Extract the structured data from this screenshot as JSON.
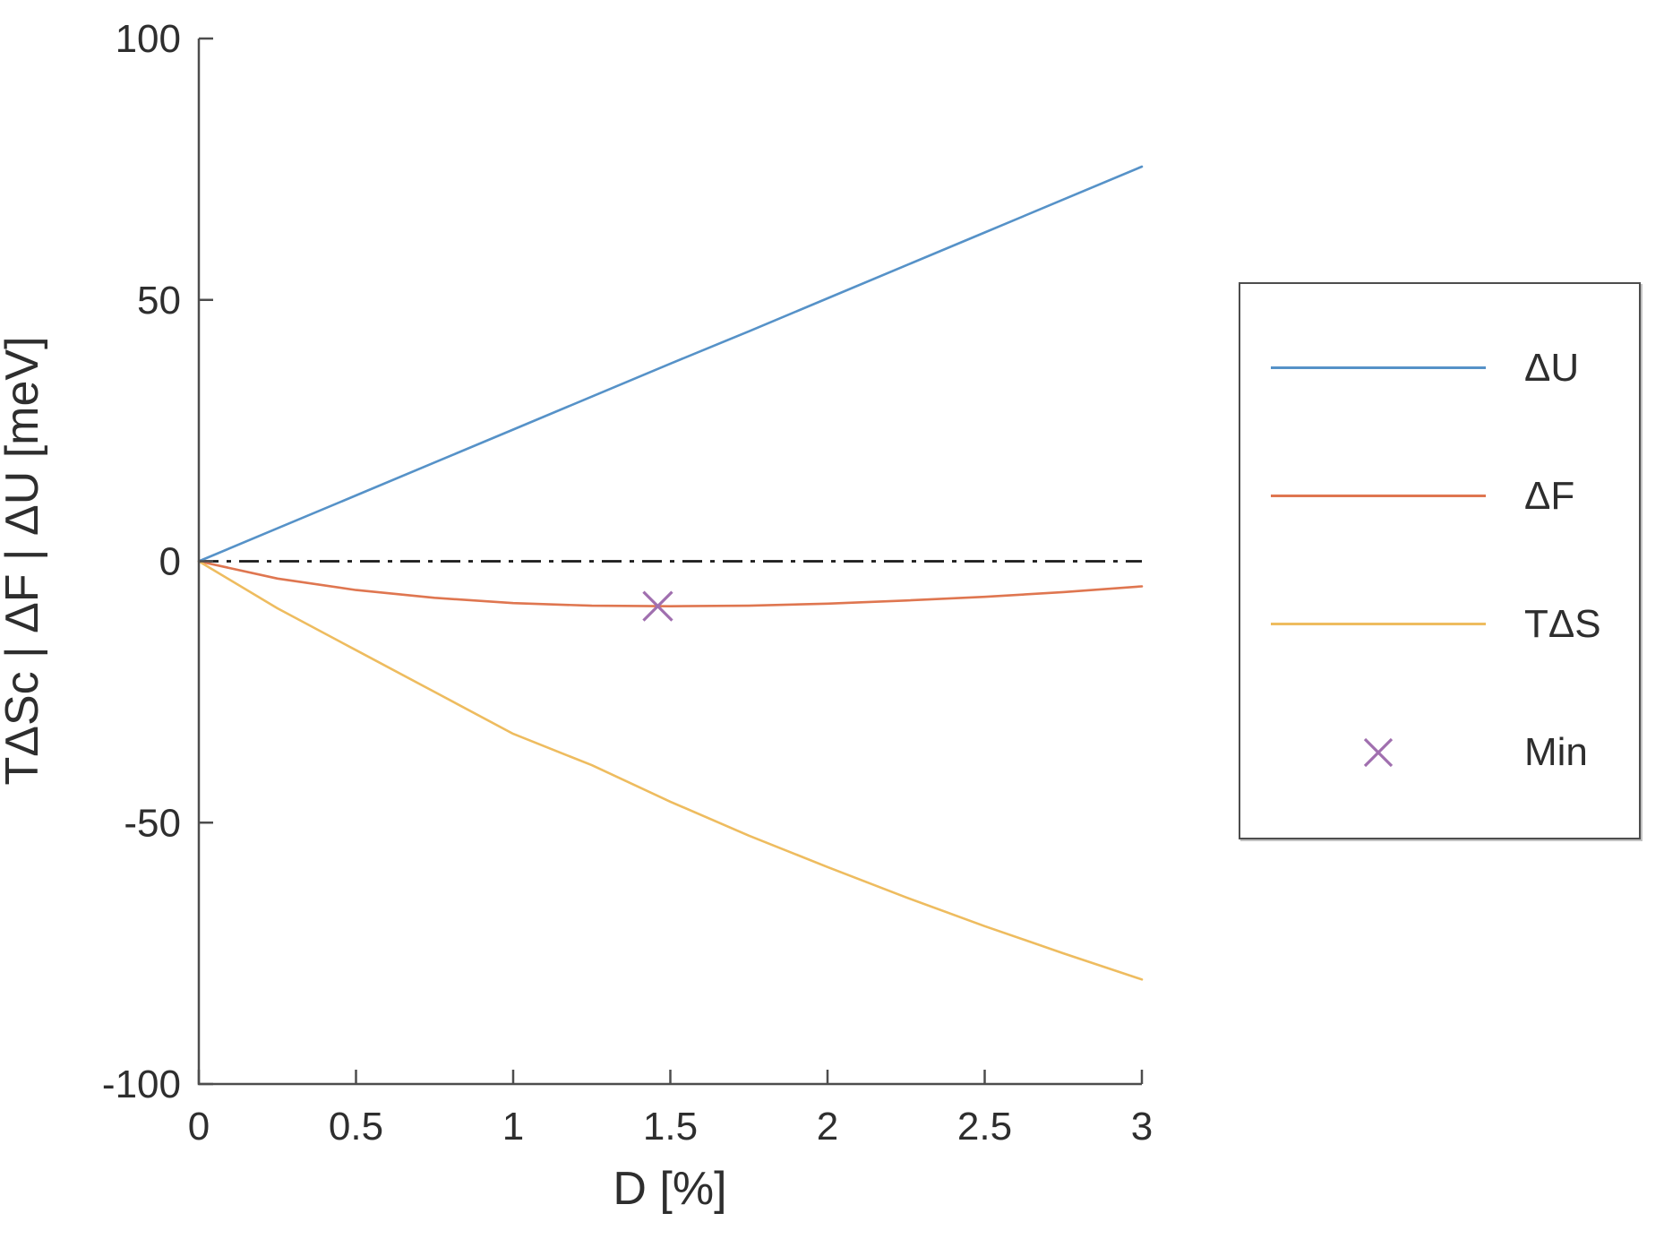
{
  "figure": {
    "background": "#ffffff",
    "axis_color": "#4d4d4d",
    "text_color": "#2e2e2e",
    "zero_line_color": "#1a1a1a"
  },
  "axes": {
    "xlabel": "D [%]",
    "ylabel": "TΔSc | ΔF | ΔU [meV]"
  },
  "legend": {
    "items": [
      {
        "label": "ΔU",
        "swatch": "line",
        "color": "#5692C8"
      },
      {
        "label": "ΔF",
        "swatch": "line",
        "color": "#DF7650"
      },
      {
        "label": "TΔS",
        "swatch": "line",
        "color": "#EEBC5F"
      },
      {
        "label": "Min",
        "swatch": "x-marker",
        "color": "#A06FAF"
      }
    ]
  },
  "chart_data": {
    "type": "line",
    "title": "",
    "xlabel": "D [%]",
    "ylabel": "TΔSc | ΔF | ΔU [meV]",
    "xlim": [
      0,
      3
    ],
    "ylim": [
      -100,
      100
    ],
    "grid": false,
    "box": false,
    "legend_position": "outside-right",
    "x_ticks": [
      0,
      0.5,
      1,
      1.5,
      2,
      2.5,
      3
    ],
    "x_tick_labels": [
      "0",
      "0.5",
      "1",
      "1.5",
      "2",
      "2.5",
      "3"
    ],
    "y_ticks": [
      -100,
      -50,
      0,
      50,
      100
    ],
    "y_tick_labels": [
      "-100",
      "-50",
      "0",
      "50",
      "100"
    ],
    "zero_line": {
      "y": 0,
      "style": "dash-dot",
      "color": "#1a1a1a"
    },
    "x": [
      0,
      0.25,
      0.5,
      0.75,
      1.0,
      1.25,
      1.5,
      1.75,
      2.0,
      2.25,
      2.5,
      2.75,
      3.0
    ],
    "series": [
      {
        "name": "ΔU",
        "color": "#5692C8",
        "style": "solid",
        "values": [
          0,
          6.3,
          12.6,
          18.9,
          25.2,
          31.5,
          37.8,
          44.0,
          50.3,
          56.6,
          62.9,
          69.2,
          75.5
        ]
      },
      {
        "name": "ΔF",
        "color": "#DF7650",
        "style": "solid",
        "values": [
          0,
          -3.3,
          -5.5,
          -7.0,
          -8.0,
          -8.5,
          -8.6,
          -8.5,
          -8.1,
          -7.5,
          -6.8,
          -5.9,
          -4.8
        ]
      },
      {
        "name": "TΔS",
        "color": "#EEBC5F",
        "style": "solid",
        "values": [
          0,
          -9.0,
          -17.0,
          -25.0,
          -33.0,
          -39.0,
          -46.0,
          -52.5,
          -58.5,
          -64.3,
          -69.8,
          -75.0,
          -80.0
        ]
      }
    ],
    "markers": [
      {
        "name": "Min",
        "symbol": "x",
        "color": "#A06FAF",
        "x": 1.46,
        "y": -8.6
      }
    ]
  }
}
